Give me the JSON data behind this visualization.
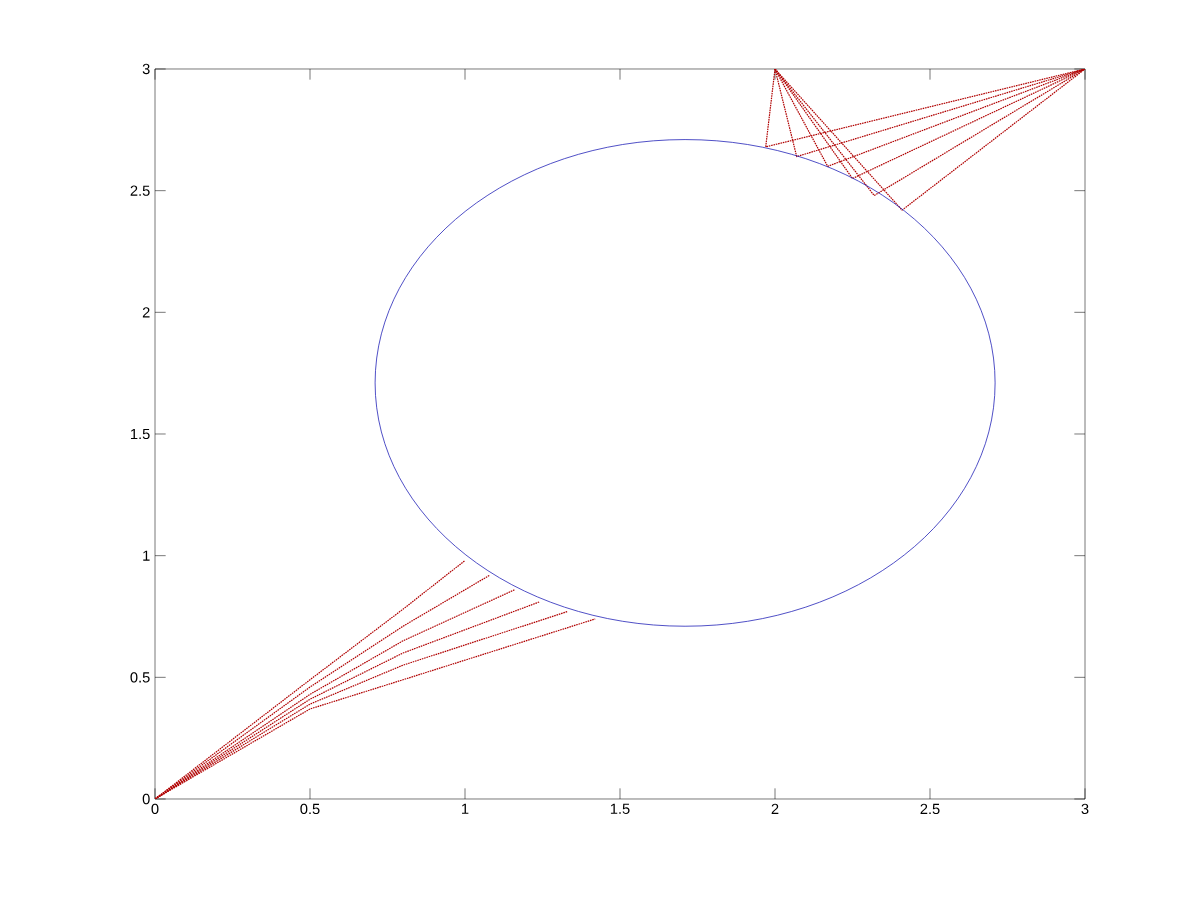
{
  "chart_data": {
    "type": "line",
    "xlim": [
      0,
      3
    ],
    "ylim": [
      0,
      3
    ],
    "xticks": [
      0,
      0.5,
      1,
      1.5,
      2,
      2.5,
      3
    ],
    "yticks": [
      0,
      0.5,
      1,
      1.5,
      2,
      2.5,
      3
    ],
    "grid": false,
    "marker": "none",
    "series": [
      {
        "color": "#b00000",
        "line_style": "dotted",
        "x": [
          0,
          0.5,
          0.8,
          1.0
        ],
        "values": [
          0,
          0.49,
          0.78,
          0.98
        ]
      },
      {
        "color": "#b00000",
        "line_style": "dotted",
        "x": [
          0,
          0.5,
          0.8,
          1.08
        ],
        "values": [
          0,
          0.46,
          0.71,
          0.92
        ]
      },
      {
        "color": "#b00000",
        "line_style": "dotted",
        "x": [
          0,
          0.5,
          0.8,
          1.16
        ],
        "values": [
          0,
          0.43,
          0.65,
          0.86
        ]
      },
      {
        "color": "#b00000",
        "line_style": "dotted",
        "x": [
          0,
          0.5,
          0.8,
          1.24
        ],
        "values": [
          0,
          0.41,
          0.6,
          0.81
        ]
      },
      {
        "color": "#b00000",
        "line_style": "dotted",
        "x": [
          0,
          0.5,
          0.8,
          1.33
        ],
        "values": [
          0,
          0.39,
          0.55,
          0.77
        ]
      },
      {
        "color": "#b00000",
        "line_style": "dotted",
        "x": [
          0,
          0.5,
          0.8,
          1.42
        ],
        "values": [
          0,
          0.37,
          0.49,
          0.74
        ]
      },
      {
        "color": "#b00000",
        "line_style": "dotted",
        "x": [
          2,
          1.97,
          3
        ],
        "values": [
          3,
          2.68,
          3
        ]
      },
      {
        "color": "#b00000",
        "line_style": "dotted",
        "x": [
          2,
          2.07,
          3
        ],
        "values": [
          3,
          2.64,
          3
        ]
      },
      {
        "color": "#b00000",
        "line_style": "dotted",
        "x": [
          2,
          2.17,
          3
        ],
        "values": [
          3,
          2.6,
          3
        ]
      },
      {
        "color": "#b00000",
        "line_style": "dotted",
        "x": [
          2,
          2.25,
          3
        ],
        "values": [
          3,
          2.55,
          3
        ]
      },
      {
        "color": "#b00000",
        "line_style": "dotted",
        "x": [
          2,
          2.32,
          3
        ],
        "values": [
          3,
          2.48,
          3
        ]
      },
      {
        "color": "#b00000",
        "line_style": "dotted",
        "x": [
          2,
          2.41,
          3
        ],
        "values": [
          3,
          2.42,
          3
        ]
      }
    ]
  }
}
